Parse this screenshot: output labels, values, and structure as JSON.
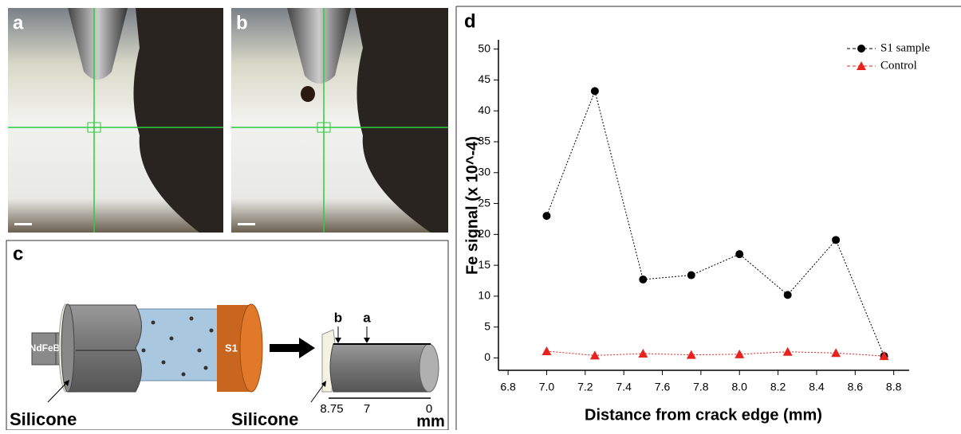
{
  "panel_labels": [
    "a",
    "b",
    "c",
    "d"
  ],
  "diagram": {
    "magnet": "NdFeB",
    "sample": "S1",
    "left_material": "Silicone",
    "right_material": "Silicone",
    "points": [
      "b",
      "a"
    ],
    "scale": [
      "8.75",
      "7",
      "0"
    ],
    "unit": "mm"
  },
  "chart_data": {
    "type": "line",
    "xlabel": "Distance from crack edge (mm)",
    "ylabel": "Fe signal (x 10^-4)",
    "x": [
      7.0,
      7.25,
      7.5,
      7.75,
      8.0,
      8.25,
      8.5,
      8.75
    ],
    "series": [
      {
        "name": "S1 sample",
        "color": "#000000",
        "marker": "circle",
        "values": [
          23,
          43.2,
          12.7,
          13.4,
          16.8,
          10.2,
          19.1,
          0.3
        ]
      },
      {
        "name": "Control",
        "color": "#e8231f",
        "marker": "triangle",
        "values": [
          1.1,
          0.4,
          0.7,
          0.5,
          0.6,
          1.0,
          0.8,
          0.3
        ]
      }
    ],
    "xlim": [
      6.75,
      8.88
    ],
    "xticks": [
      {
        "value": 6.8,
        "label": "6.8"
      },
      {
        "value": 7.0,
        "label": "7.0"
      },
      {
        "value": 7.2,
        "label": "7.2"
      },
      {
        "value": 7.4,
        "label": "7.4"
      },
      {
        "value": 7.6,
        "label": "7.6"
      },
      {
        "value": 7.8,
        "label": "7.8"
      },
      {
        "value": 8.0,
        "label": "8.0"
      },
      {
        "value": 8.2,
        "label": "8.2"
      },
      {
        "value": 8.4,
        "label": "8.4"
      },
      {
        "value": 8.6,
        "label": "8.6"
      },
      {
        "value": 8.8,
        "label": "8.8"
      }
    ],
    "ylim": [
      -2,
      51.5
    ],
    "yticks": [
      0,
      5,
      10,
      15,
      20,
      25,
      30,
      35,
      40,
      45,
      50
    ],
    "legend": "top-right"
  }
}
